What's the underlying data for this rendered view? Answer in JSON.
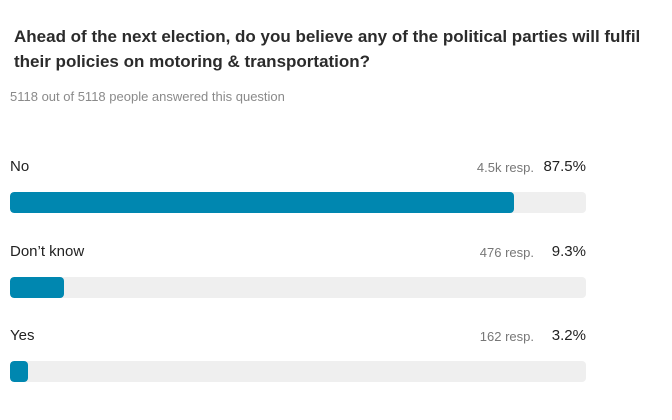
{
  "chart_data": {
    "type": "bar",
    "title": "Ahead of the next election, do you believe any of the political parties will fulfil their policies on motoring & transportation?",
    "subtitle": "5118 out of 5118 people answered this question",
    "categories": [
      "No",
      "Don’t know",
      "Yes"
    ],
    "values": [
      87.5,
      9.3,
      3.2
    ],
    "value_labels": [
      "87.5%",
      "9.3%",
      "3.2%"
    ],
    "responses": [
      4500,
      476,
      162
    ],
    "response_labels": [
      "4.5k resp.",
      "476 resp.",
      "162 resp."
    ],
    "xlim": [
      0,
      100
    ],
    "color": "#0087b0"
  }
}
